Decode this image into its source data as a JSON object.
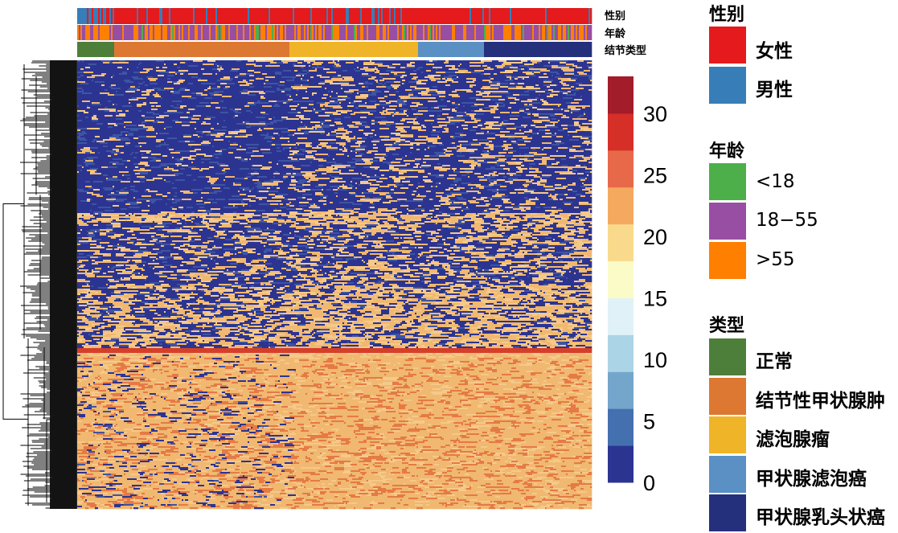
{
  "chart_data": {
    "type": "heatmap",
    "title": "",
    "annotation_tracks": [
      "性别",
      "年龄",
      "结节类型"
    ],
    "colorbar": {
      "ticks": [
        0,
        5,
        10,
        15,
        20,
        25,
        30
      ],
      "range": [
        0,
        33
      ],
      "bins": 11,
      "colors": [
        "#2c3491",
        "#4470b0",
        "#74a6cc",
        "#abd4e6",
        "#e0f2f8",
        "#fbfbc8",
        "#f9da8d",
        "#f4a95f",
        "#e8694a",
        "#d62f27",
        "#a31c2a"
      ]
    },
    "heatmap_colors": {
      "low": "#2c3491",
      "mid": "#f0b870",
      "high": "#d53f2a"
    },
    "sample_groups": [
      {
        "label": "正常",
        "fraction": 0.072
      },
      {
        "label": "结节性甲状腺肿",
        "fraction": 0.342
      },
      {
        "label": "滤泡腺瘤",
        "fraction": 0.247
      },
      {
        "label": "甲状腺滤泡癌",
        "fraction": 0.131
      },
      {
        "label": "甲状腺乳头状癌",
        "fraction": 0.208
      }
    ],
    "row_blocks": [
      {
        "rows": "top",
        "dominant": "low"
      },
      {
        "rows": "upper-middle",
        "dominant": "mixed"
      },
      {
        "rows": "band",
        "dominant": "high"
      },
      {
        "rows": "bottom",
        "dominant": "mid-high"
      }
    ],
    "dendrogram": "rows"
  },
  "legend": {
    "gender": {
      "title": "性别",
      "items": [
        {
          "label": "女性",
          "color": "#e41a1c",
          "bold": true
        },
        {
          "label": "男性",
          "color": "#377eb8",
          "bold": true
        }
      ]
    },
    "age": {
      "title": "年龄",
      "items": [
        {
          "label": "<18",
          "color": "#4daf4a",
          "bold": false
        },
        {
          "label": "18−55",
          "color": "#984ea3",
          "bold": false
        },
        {
          "label": ">55",
          "color": "#ff7f00",
          "bold": false
        }
      ]
    },
    "type": {
      "title": "类型",
      "items": [
        {
          "label": "正常",
          "color": "#4e7f3a",
          "bold": true
        },
        {
          "label": "结节性甲状腺肿",
          "color": "#dd7832",
          "bold": true
        },
        {
          "label": "滤泡腺瘤",
          "color": "#f0b428",
          "bold": true
        },
        {
          "label": "甲状腺滤泡癌",
          "color": "#5b90c4",
          "bold": true
        },
        {
          "label": "甲状腺乳头状癌",
          "color": "#25307d",
          "bold": true
        }
      ]
    }
  }
}
